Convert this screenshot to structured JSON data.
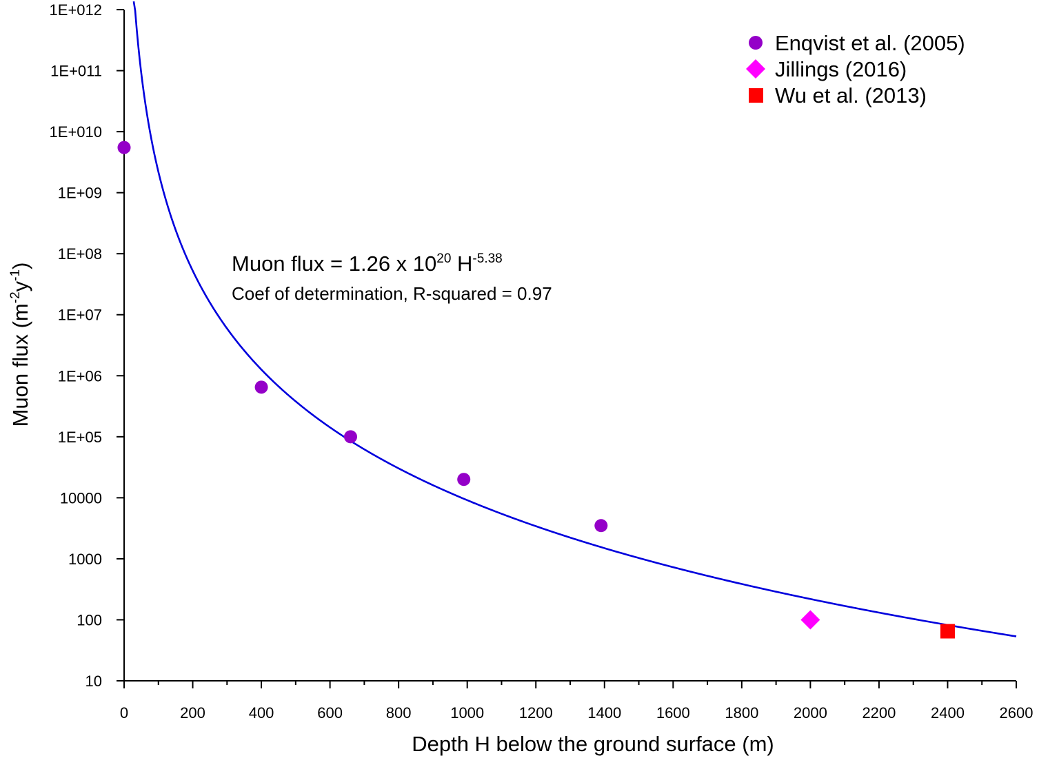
{
  "chart_data": {
    "type": "scatter",
    "xlabel": "Depth H below the ground surface (m)",
    "ylabel": {
      "base": "Muon flux (m",
      "sup1": "-2",
      "mid": "y",
      "sup2": "-1",
      "end": ")"
    },
    "xlim": [
      0,
      2600
    ],
    "ylim": [
      10,
      1000000000000.0
    ],
    "yscale": "log",
    "x_ticks": [
      0,
      200,
      400,
      600,
      800,
      1000,
      1200,
      1400,
      1600,
      1800,
      2000,
      2200,
      2400,
      2600
    ],
    "x_tick_labels": [
      "0",
      "200",
      "400",
      "600",
      "800",
      "1000",
      "1200",
      "1400",
      "1600",
      "1800",
      "2000",
      "2200",
      "2400",
      "2600"
    ],
    "y_ticks": [
      10,
      100,
      1000,
      10000,
      100000,
      1000000,
      10000000,
      100000000,
      1000000000,
      10000000000,
      100000000000,
      1000000000000
    ],
    "y_tick_labels": [
      "10",
      "100",
      "1000",
      "10000",
      "1E+05",
      "1E+06",
      "1E+07",
      "1E+08",
      "1E+09",
      "1E+010",
      "1E+011",
      "1E+012"
    ],
    "legend_position": "top-right",
    "series": [
      {
        "name": "Enqvist et al. (2005)",
        "marker": "circle",
        "color": "#9400c8",
        "points": [
          {
            "x": 0,
            "y": 5500000000
          },
          {
            "x": 400,
            "y": 650000
          },
          {
            "x": 660,
            "y": 100000
          },
          {
            "x": 990,
            "y": 20000
          },
          {
            "x": 1390,
            "y": 3500
          }
        ]
      },
      {
        "name": "Jillings (2016)",
        "marker": "diamond",
        "color": "#ff00ff",
        "points": [
          {
            "x": 2000,
            "y": 100
          }
        ]
      },
      {
        "name": "Wu et al. (2013)",
        "marker": "square",
        "color": "#ff0000",
        "points": [
          {
            "x": 2400,
            "y": 65
          }
        ]
      }
    ],
    "fit": {
      "coefficient": 1.26e+20,
      "exponent": -5.38,
      "color": "#0000dd",
      "x_range": [
        28,
        2600
      ]
    },
    "annotation": {
      "line1_prefix": "Muon flux = 1.26 x 10",
      "line1_sup1": "20",
      "line1_mid": " H",
      "line1_sup2": "-5.38",
      "line2": "Coef of determination, R-squared = 0.97"
    }
  }
}
